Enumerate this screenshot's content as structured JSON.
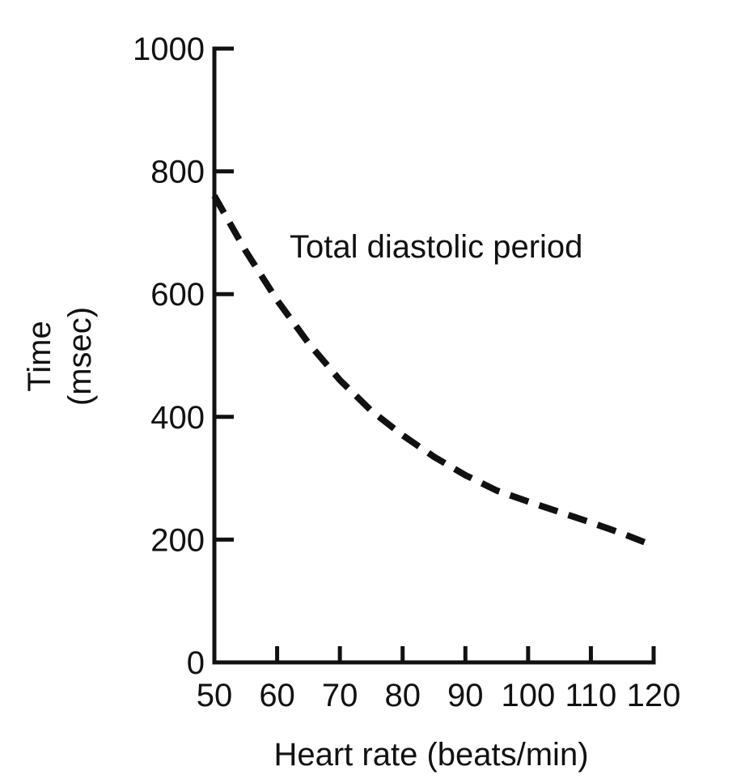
{
  "chart_data": {
    "type": "line",
    "title": "",
    "xlabel": "Heart rate (beats/min)",
    "ylabel": [
      "Time",
      "(msec)"
    ],
    "xlim": [
      50,
      120
    ],
    "ylim": [
      0,
      1000
    ],
    "xticks": [
      50,
      60,
      70,
      80,
      90,
      100,
      110,
      120
    ],
    "yticks": [
      0,
      200,
      400,
      600,
      800,
      1000
    ],
    "xtick_labels": [
      "50",
      "60",
      "70",
      "80",
      "90",
      "100",
      "110",
      "120"
    ],
    "ytick_labels": [
      "0",
      "200",
      "400",
      "600",
      "800",
      "1000"
    ],
    "grid": false,
    "legend": "none",
    "series": [
      {
        "name": "Total diastolic period",
        "style": "dashed",
        "color": "#111111",
        "x": [
          50,
          55,
          60,
          65,
          70,
          75,
          80,
          85,
          90,
          95,
          100,
          105,
          110,
          115,
          120
        ],
        "y": [
          760,
          670,
          590,
          520,
          460,
          410,
          370,
          335,
          305,
          280,
          262,
          245,
          228,
          210,
          190
        ]
      }
    ]
  }
}
